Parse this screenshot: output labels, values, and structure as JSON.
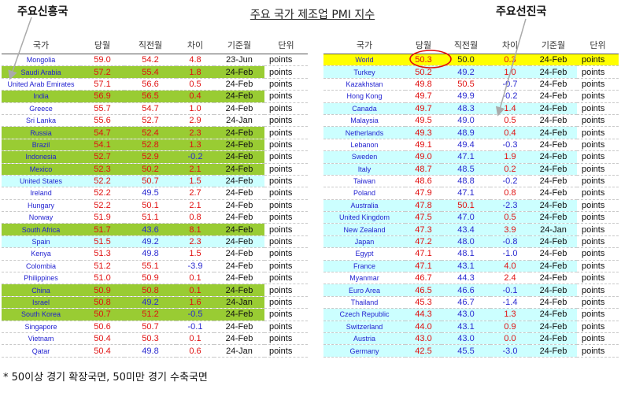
{
  "title": "주요 국가 제조업 PMI 지수",
  "annotations": {
    "emerging_label": "주요신흥국",
    "advanced_label": "주요선진국"
  },
  "colors": {
    "green": "#99cc33",
    "cyan": "#ccffff",
    "yellow": "#ffff00",
    "white": "#ffffff",
    "red": "#e01010",
    "blue": "#2a2ad0",
    "country_text": "#1f1fd0"
  },
  "footnote": "* 50이상 경기 확장국면, 50미만 경기 수축국면",
  "chart_data": [
    {
      "type": "table",
      "name": "emerging",
      "columns": [
        "국가",
        "당월",
        "직전월",
        "차이",
        "기준월",
        "단위"
      ],
      "rows": [
        {
          "country": "Mongolia",
          "current": "59.0",
          "previous": "54.2",
          "diff": "4.8",
          "month": "23-Jun",
          "unit": "points",
          "bg": "white",
          "prev_color": "red"
        },
        {
          "country": "Saudi Arabia",
          "current": "57.2",
          "previous": "55.4",
          "diff": "1.8",
          "month": "24-Feb",
          "unit": "points",
          "bg": "green",
          "prev_color": "red"
        },
        {
          "country": "United Arab Emirates",
          "current": "57.1",
          "previous": "56.6",
          "diff": "0.5",
          "month": "24-Feb",
          "unit": "points",
          "bg": "white",
          "prev_color": "red"
        },
        {
          "country": "India",
          "current": "56.9",
          "previous": "56.5",
          "diff": "0.4",
          "month": "24-Feb",
          "unit": "points",
          "bg": "green",
          "prev_color": "red"
        },
        {
          "country": "Greece",
          "current": "55.7",
          "previous": "54.7",
          "diff": "1.0",
          "month": "24-Feb",
          "unit": "points",
          "bg": "white",
          "prev_color": "red"
        },
        {
          "country": "Sri Lanka",
          "current": "55.6",
          "previous": "52.7",
          "diff": "2.9",
          "month": "24-Jan",
          "unit": "points",
          "bg": "white",
          "prev_color": "red"
        },
        {
          "country": "Russia",
          "current": "54.7",
          "previous": "52.4",
          "diff": "2.3",
          "month": "24-Feb",
          "unit": "points",
          "bg": "green",
          "prev_color": "red"
        },
        {
          "country": "Brazil",
          "current": "54.1",
          "previous": "52.8",
          "diff": "1.3",
          "month": "24-Feb",
          "unit": "points",
          "bg": "green",
          "prev_color": "red"
        },
        {
          "country": "Indonesia",
          "current": "52.7",
          "previous": "52.9",
          "diff": "-0.2",
          "month": "24-Feb",
          "unit": "points",
          "bg": "green",
          "prev_color": "red"
        },
        {
          "country": "Mexico",
          "current": "52.3",
          "previous": "50.2",
          "diff": "2.1",
          "month": "24-Feb",
          "unit": "points",
          "bg": "green",
          "prev_color": "red"
        },
        {
          "country": "United States",
          "current": "52.2",
          "previous": "50.7",
          "diff": "1.5",
          "month": "24-Feb",
          "unit": "points",
          "bg": "cyan",
          "prev_color": "red"
        },
        {
          "country": "Ireland",
          "current": "52.2",
          "previous": "49.5",
          "diff": "2.7",
          "month": "24-Feb",
          "unit": "points",
          "bg": "white",
          "prev_color": "blue"
        },
        {
          "country": "Hungary",
          "current": "52.2",
          "previous": "50.1",
          "diff": "2.1",
          "month": "24-Feb",
          "unit": "points",
          "bg": "white",
          "prev_color": "red"
        },
        {
          "country": "Norway",
          "current": "51.9",
          "previous": "51.1",
          "diff": "0.8",
          "month": "24-Feb",
          "unit": "points",
          "bg": "white",
          "prev_color": "red"
        },
        {
          "country": "South Africa",
          "current": "51.7",
          "previous": "43.6",
          "diff": "8.1",
          "month": "24-Feb",
          "unit": "points",
          "bg": "green",
          "prev_color": "blue"
        },
        {
          "country": "Spain",
          "current": "51.5",
          "previous": "49.2",
          "diff": "2.3",
          "month": "24-Feb",
          "unit": "points",
          "bg": "cyan",
          "prev_color": "blue"
        },
        {
          "country": "Kenya",
          "current": "51.3",
          "previous": "49.8",
          "diff": "1.5",
          "month": "24-Feb",
          "unit": "points",
          "bg": "white",
          "prev_color": "blue"
        },
        {
          "country": "Colombia",
          "current": "51.2",
          "previous": "55.1",
          "diff": "-3.9",
          "month": "24-Feb",
          "unit": "points",
          "bg": "white",
          "prev_color": "red"
        },
        {
          "country": "Philippines",
          "current": "51.0",
          "previous": "50.9",
          "diff": "0.1",
          "month": "24-Feb",
          "unit": "points",
          "bg": "white",
          "prev_color": "red"
        },
        {
          "country": "China",
          "current": "50.9",
          "previous": "50.8",
          "diff": "0.1",
          "month": "24-Feb",
          "unit": "points",
          "bg": "green",
          "prev_color": "red"
        },
        {
          "country": "Israel",
          "current": "50.8",
          "previous": "49.2",
          "diff": "1.6",
          "month": "24-Jan",
          "unit": "points",
          "bg": "green",
          "prev_color": "blue"
        },
        {
          "country": "South Korea",
          "current": "50.7",
          "previous": "51.2",
          "diff": "-0.5",
          "month": "24-Feb",
          "unit": "points",
          "bg": "green",
          "prev_color": "red"
        },
        {
          "country": "Singapore",
          "current": "50.6",
          "previous": "50.7",
          "diff": "-0.1",
          "month": "24-Feb",
          "unit": "points",
          "bg": "white",
          "prev_color": "red"
        },
        {
          "country": "Vietnam",
          "current": "50.4",
          "previous": "50.3",
          "diff": "0.1",
          "month": "24-Feb",
          "unit": "points",
          "bg": "white",
          "prev_color": "red"
        },
        {
          "country": "Qatar",
          "current": "50.4",
          "previous": "49.8",
          "diff": "0.6",
          "month": "24-Jan",
          "unit": "points",
          "bg": "white",
          "prev_color": "blue"
        }
      ]
    },
    {
      "type": "table",
      "name": "advanced",
      "columns": [
        "국가",
        "당월",
        "직전월",
        "차이",
        "기준월",
        "단위"
      ],
      "rows": [
        {
          "country": "World",
          "current": "50.3",
          "previous": "50.0",
          "diff": "0.3",
          "month": "24-Feb",
          "unit": "points",
          "bg": "yellow",
          "prev_color": "dark",
          "circled": true
        },
        {
          "country": "Turkey",
          "current": "50.2",
          "previous": "49.2",
          "diff": "1.0",
          "month": "24-Feb",
          "unit": "points",
          "bg": "cyan",
          "prev_color": "blue"
        },
        {
          "country": "Kazakhstan",
          "current": "49.8",
          "previous": "50.5",
          "diff": "-0.7",
          "month": "24-Feb",
          "unit": "points",
          "bg": "white",
          "prev_color": "red"
        },
        {
          "country": "Hong Kong",
          "current": "49.7",
          "previous": "49.9",
          "diff": "-0.2",
          "month": "24-Feb",
          "unit": "points",
          "bg": "white",
          "prev_color": "blue"
        },
        {
          "country": "Canada",
          "current": "49.7",
          "previous": "48.3",
          "diff": "1.4",
          "month": "24-Feb",
          "unit": "points",
          "bg": "cyan",
          "prev_color": "blue"
        },
        {
          "country": "Malaysia",
          "current": "49.5",
          "previous": "49.0",
          "diff": "0.5",
          "month": "24-Feb",
          "unit": "points",
          "bg": "white",
          "prev_color": "blue"
        },
        {
          "country": "Netherlands",
          "current": "49.3",
          "previous": "48.9",
          "diff": "0.4",
          "month": "24-Feb",
          "unit": "points",
          "bg": "cyan",
          "prev_color": "blue"
        },
        {
          "country": "Lebanon",
          "current": "49.1",
          "previous": "49.4",
          "diff": "-0.3",
          "month": "24-Feb",
          "unit": "points",
          "bg": "white",
          "prev_color": "blue"
        },
        {
          "country": "Sweden",
          "current": "49.0",
          "previous": "47.1",
          "diff": "1.9",
          "month": "24-Feb",
          "unit": "points",
          "bg": "cyan",
          "prev_color": "blue"
        },
        {
          "country": "Italy",
          "current": "48.7",
          "previous": "48.5",
          "diff": "0.2",
          "month": "24-Feb",
          "unit": "points",
          "bg": "cyan",
          "prev_color": "blue"
        },
        {
          "country": "Taiwan",
          "current": "48.6",
          "previous": "48.8",
          "diff": "-0.2",
          "month": "24-Feb",
          "unit": "points",
          "bg": "white",
          "prev_color": "blue"
        },
        {
          "country": "Poland",
          "current": "47.9",
          "previous": "47.1",
          "diff": "0.8",
          "month": "24-Feb",
          "unit": "points",
          "bg": "white",
          "prev_color": "blue"
        },
        {
          "country": "Australia",
          "current": "47.8",
          "previous": "50.1",
          "diff": "-2.3",
          "month": "24-Feb",
          "unit": "points",
          "bg": "cyan",
          "prev_color": "red"
        },
        {
          "country": "United Kingdom",
          "current": "47.5",
          "previous": "47.0",
          "diff": "0.5",
          "month": "24-Feb",
          "unit": "points",
          "bg": "cyan",
          "prev_color": "blue"
        },
        {
          "country": "New Zealand",
          "current": "47.3",
          "previous": "43.4",
          "diff": "3.9",
          "month": "24-Jan",
          "unit": "points",
          "bg": "cyan",
          "prev_color": "blue"
        },
        {
          "country": "Japan",
          "current": "47.2",
          "previous": "48.0",
          "diff": "-0.8",
          "month": "24-Feb",
          "unit": "points",
          "bg": "cyan",
          "prev_color": "blue"
        },
        {
          "country": "Egypt",
          "current": "47.1",
          "previous": "48.1",
          "diff": "-1.0",
          "month": "24-Feb",
          "unit": "points",
          "bg": "white",
          "prev_color": "blue"
        },
        {
          "country": "France",
          "current": "47.1",
          "previous": "43.1",
          "diff": "4.0",
          "month": "24-Feb",
          "unit": "points",
          "bg": "cyan",
          "prev_color": "blue"
        },
        {
          "country": "Myanmar",
          "current": "46.7",
          "previous": "44.3",
          "diff": "2.4",
          "month": "24-Feb",
          "unit": "points",
          "bg": "white",
          "prev_color": "blue"
        },
        {
          "country": "Euro Area",
          "current": "46.5",
          "previous": "46.6",
          "diff": "-0.1",
          "month": "24-Feb",
          "unit": "points",
          "bg": "cyan",
          "prev_color": "blue"
        },
        {
          "country": "Thailand",
          "current": "45.3",
          "previous": "46.7",
          "diff": "-1.4",
          "month": "24-Feb",
          "unit": "points",
          "bg": "white",
          "prev_color": "blue"
        },
        {
          "country": "Czech Republic",
          "current": "44.3",
          "previous": "43.0",
          "diff": "1.3",
          "month": "24-Feb",
          "unit": "points",
          "bg": "cyan",
          "prev_color": "blue"
        },
        {
          "country": "Switzerland",
          "current": "44.0",
          "previous": "43.1",
          "diff": "0.9",
          "month": "24-Feb",
          "unit": "points",
          "bg": "cyan",
          "prev_color": "blue"
        },
        {
          "country": "Austria",
          "current": "43.0",
          "previous": "43.0",
          "diff": "0.0",
          "month": "24-Feb",
          "unit": "points",
          "bg": "cyan",
          "prev_color": "blue"
        },
        {
          "country": "Germany",
          "current": "42.5",
          "previous": "45.5",
          "diff": "-3.0",
          "month": "24-Feb",
          "unit": "points",
          "bg": "cyan",
          "prev_color": "blue"
        }
      ]
    }
  ]
}
